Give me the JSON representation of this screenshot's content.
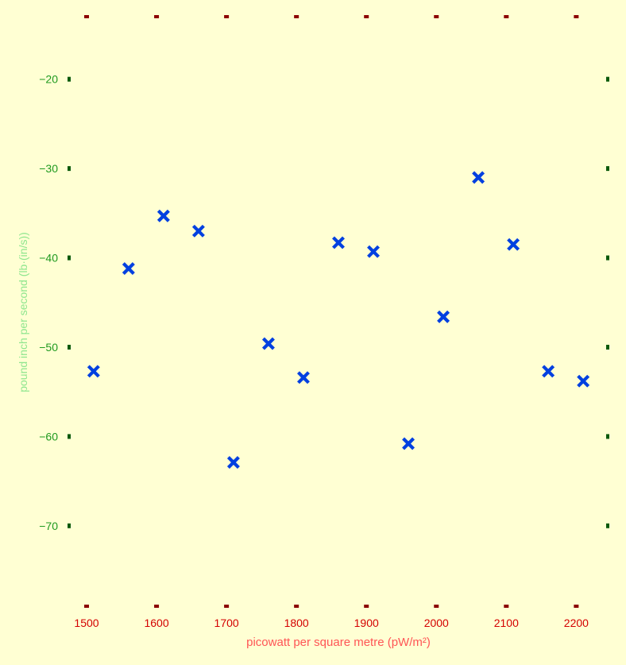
{
  "chart_data": {
    "type": "scatter",
    "title": "",
    "xlabel": "picowatt per square metre (pW/m²)",
    "ylabel": "pound inch per second (lb·(in/s))",
    "xlim": [
      1475,
      2245
    ],
    "ylim": [
      -79,
      -13
    ],
    "x_ticks": [
      1500,
      1600,
      1700,
      1800,
      1900,
      2000,
      2100,
      2200
    ],
    "x_tick_labels": [
      "1500",
      "1600",
      "1700",
      "1800",
      "1900",
      "2000",
      "2100",
      "2200"
    ],
    "y_ticks": [
      -20,
      -30,
      -40,
      -50,
      -60,
      -70
    ],
    "y_tick_labels": [
      "−20",
      "−30",
      "−40",
      "−50",
      "−60",
      "−70"
    ],
    "grid": false,
    "marker": "X",
    "colors": {
      "background": "#ffffd3",
      "marker": "#0040e0",
      "x_tick": "#8b0000",
      "x_tick_label": "#d40000",
      "y_tick": "#0b5a0b",
      "y_tick_label": "#1f9a1f",
      "xlabel": "#ff5555",
      "ylabel": "#8ee68e"
    },
    "series": [
      {
        "x": [
          1510,
          1560,
          1610,
          1660,
          1710,
          1760,
          1810,
          1860,
          1910,
          1960,
          2010,
          2060,
          2110,
          2160,
          2210
        ],
        "y": [
          -52.7,
          -41.2,
          -35.3,
          -37.0,
          -62.9,
          -49.6,
          -53.4,
          -38.3,
          -39.3,
          -60.8,
          -46.6,
          -31.0,
          -38.5,
          -52.7,
          -53.8
        ]
      }
    ]
  }
}
